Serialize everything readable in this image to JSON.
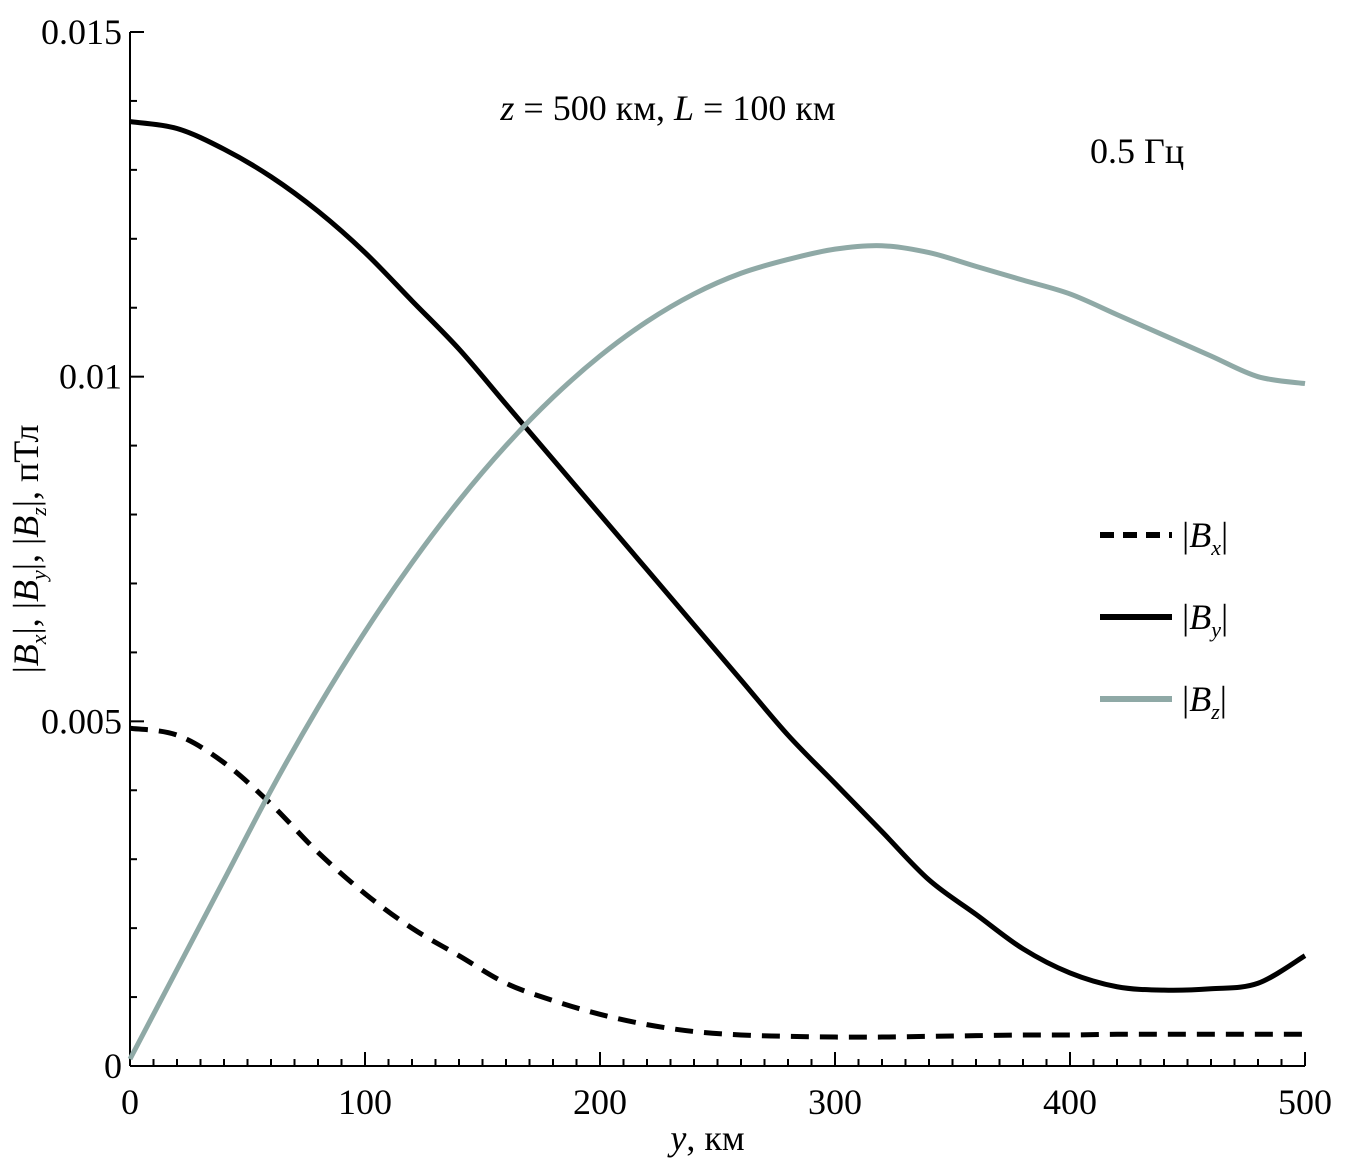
{
  "chart_data": {
    "type": "line",
    "title": "",
    "xlabel": "y, км",
    "ylabel": "|Bx|, |By|, |Bz|, пТл",
    "xlim": [
      0,
      500
    ],
    "ylim": [
      0,
      0.015
    ],
    "x_ticks": [
      "0",
      "100",
      "200",
      "300",
      "400",
      "500"
    ],
    "y_ticks": [
      "0",
      "0.005",
      "0.01",
      "0.015"
    ],
    "x_tick_values": [
      0,
      100,
      200,
      300,
      400,
      500
    ],
    "y_tick_values": [
      0,
      0.005,
      0.01,
      0.015
    ],
    "x_minor_step": 10,
    "y_minor_step": 0.001,
    "grid": false,
    "legend_position": "right",
    "annotations": {
      "params": "z = 500 км, L = 100 км",
      "frequency": "0.5 Гц"
    },
    "series": [
      {
        "name": "|Bx|",
        "style": "dashed",
        "color": "#000000",
        "x": [
          0,
          20,
          40,
          60,
          80,
          100,
          120,
          140,
          160,
          180,
          200,
          220,
          240,
          260,
          280,
          300,
          320,
          340,
          360,
          380,
          400,
          420,
          440,
          460,
          480,
          500
        ],
        "y": [
          0.0049,
          0.0048,
          0.0044,
          0.0038,
          0.0031,
          0.0025,
          0.002,
          0.0016,
          0.0012,
          0.00095,
          0.00075,
          0.0006,
          0.0005,
          0.00045,
          0.00043,
          0.00042,
          0.00042,
          0.00043,
          0.00044,
          0.00045,
          0.00045,
          0.00046,
          0.00046,
          0.00046,
          0.00046,
          0.00046
        ]
      },
      {
        "name": "|By|",
        "style": "solid",
        "color": "#000000",
        "x": [
          0,
          20,
          40,
          60,
          80,
          100,
          120,
          140,
          160,
          180,
          200,
          220,
          240,
          260,
          280,
          300,
          320,
          340,
          360,
          380,
          400,
          420,
          440,
          460,
          480,
          500
        ],
        "y": [
          0.0137,
          0.0136,
          0.0133,
          0.0129,
          0.0124,
          0.0118,
          0.0111,
          0.0104,
          0.0096,
          0.0088,
          0.008,
          0.0072,
          0.0064,
          0.0056,
          0.0048,
          0.0041,
          0.0034,
          0.0027,
          0.0022,
          0.0017,
          0.00135,
          0.00115,
          0.0011,
          0.00112,
          0.0012,
          0.0016
        ]
      },
      {
        "name": "|Bz|",
        "style": "solid",
        "color": "#8fa9a6",
        "x": [
          0,
          20,
          40,
          60,
          80,
          100,
          120,
          140,
          160,
          180,
          200,
          220,
          240,
          260,
          280,
          300,
          320,
          340,
          360,
          380,
          400,
          420,
          440,
          460,
          480,
          500
        ],
        "y": [
          0.0001,
          0.0014,
          0.0027,
          0.004,
          0.0052,
          0.0063,
          0.0073,
          0.0082,
          0.009,
          0.0097,
          0.0103,
          0.0108,
          0.0112,
          0.0115,
          0.0117,
          0.01185,
          0.0119,
          0.0118,
          0.0116,
          0.0114,
          0.0112,
          0.0109,
          0.0106,
          0.0103,
          0.01,
          0.0099
        ]
      }
    ]
  }
}
